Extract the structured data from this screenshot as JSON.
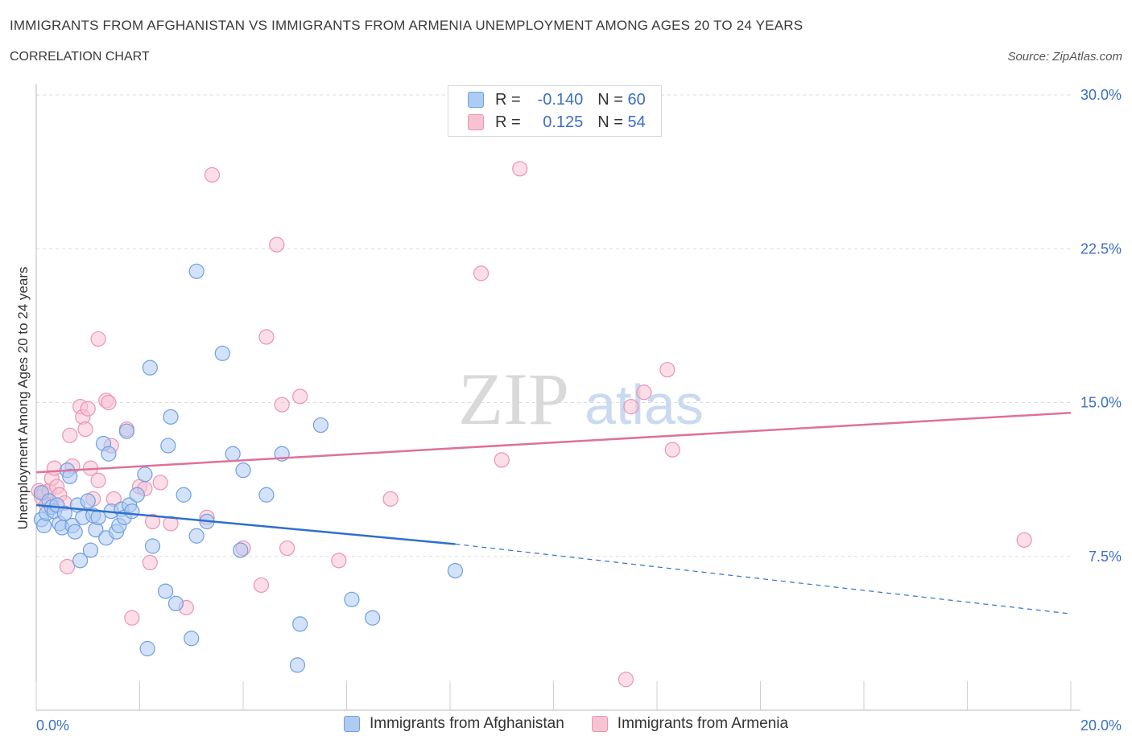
{
  "header": {
    "title": "IMMIGRANTS FROM AFGHANISTAN VS IMMIGRANTS FROM ARMENIA UNEMPLOYMENT AMONG AGES 20 TO 24 YEARS",
    "subtitle": "CORRELATION CHART",
    "source": "Source: ZipAtlas.com"
  },
  "legend": {
    "r_label": "R =",
    "n_label": "N =",
    "rows": [
      {
        "r": "-0.140",
        "n": "60"
      },
      {
        "r": "0.125",
        "n": "54"
      }
    ]
  },
  "watermark": {
    "zip": "ZIP",
    "atlas": "atlas"
  },
  "colors": {
    "blue_fill": "#aecbf2",
    "blue_stroke": "#6e9fe0",
    "blue_line": "#2f6fcf",
    "pink_fill": "#f7c3d3",
    "pink_stroke": "#eb93b2",
    "pink_line": "#e0709a",
    "axis_label": "#3b6fc4",
    "grid": "#dcdcdc"
  },
  "chart_data": {
    "type": "scatter",
    "title": "IMMIGRANTS FROM AFGHANISTAN VS IMMIGRANTS FROM ARMENIA UNEMPLOYMENT AMONG AGES 20 TO 24 YEARS",
    "xlabel": "",
    "ylabel": "Unemployment Among Ages 20 to 24 years",
    "xlim": [
      0,
      20
    ],
    "ylim": [
      0,
      30
    ],
    "x_tick_labels": [
      "0.0%",
      "20.0%"
    ],
    "y_ticks": [
      7.5,
      15.0,
      22.5,
      30.0
    ],
    "y_tick_labels": [
      "7.5%",
      "15.0%",
      "22.5%",
      "30.0%"
    ],
    "series": [
      {
        "name": "Immigrants from Afghanistan",
        "color": "blue",
        "points": [
          [
            0.1,
            10.6
          ],
          [
            0.1,
            9.3
          ],
          [
            0.15,
            9.0
          ],
          [
            0.2,
            9.6
          ],
          [
            0.25,
            10.2
          ],
          [
            0.3,
            9.9
          ],
          [
            0.35,
            9.7
          ],
          [
            0.4,
            10.0
          ],
          [
            0.45,
            9.1
          ],
          [
            0.5,
            8.9
          ],
          [
            0.55,
            9.6
          ],
          [
            0.6,
            11.7
          ],
          [
            0.65,
            11.4
          ],
          [
            0.7,
            9.0
          ],
          [
            0.75,
            8.7
          ],
          [
            0.8,
            10.0
          ],
          [
            0.85,
            7.3
          ],
          [
            0.9,
            9.4
          ],
          [
            1.0,
            10.2
          ],
          [
            1.05,
            7.8
          ],
          [
            1.1,
            9.5
          ],
          [
            1.15,
            8.8
          ],
          [
            1.2,
            9.4
          ],
          [
            1.3,
            13.0
          ],
          [
            1.35,
            8.4
          ],
          [
            1.4,
            12.5
          ],
          [
            1.45,
            9.7
          ],
          [
            1.55,
            8.7
          ],
          [
            1.6,
            9.0
          ],
          [
            1.65,
            9.8
          ],
          [
            1.7,
            9.4
          ],
          [
            1.75,
            13.6
          ],
          [
            1.8,
            10.0
          ],
          [
            1.85,
            9.7
          ],
          [
            1.95,
            10.5
          ],
          [
            2.1,
            11.5
          ],
          [
            2.15,
            3.0
          ],
          [
            2.2,
            16.7
          ],
          [
            2.25,
            8.0
          ],
          [
            2.5,
            5.8
          ],
          [
            2.55,
            12.9
          ],
          [
            2.6,
            14.3
          ],
          [
            2.7,
            5.2
          ],
          [
            2.85,
            10.5
          ],
          [
            3.0,
            3.5
          ],
          [
            3.1,
            21.4
          ],
          [
            3.1,
            8.5
          ],
          [
            3.3,
            9.2
          ],
          [
            3.6,
            17.4
          ],
          [
            3.8,
            12.5
          ],
          [
            3.95,
            7.8
          ],
          [
            4.0,
            11.7
          ],
          [
            4.45,
            10.5
          ],
          [
            4.75,
            12.5
          ],
          [
            5.05,
            2.2
          ],
          [
            5.1,
            4.2
          ],
          [
            5.5,
            13.9
          ],
          [
            6.1,
            5.4
          ],
          [
            6.5,
            4.5
          ],
          [
            8.1,
            6.8
          ]
        ]
      },
      {
        "name": "Immigrants from Armenia",
        "color": "pink",
        "points": [
          [
            0.05,
            10.7
          ],
          [
            0.1,
            10.4
          ],
          [
            0.15,
            10.6
          ],
          [
            0.2,
            10.0
          ],
          [
            0.25,
            10.7
          ],
          [
            0.3,
            11.3
          ],
          [
            0.35,
            11.8
          ],
          [
            0.4,
            10.9
          ],
          [
            0.45,
            10.5
          ],
          [
            0.55,
            10.1
          ],
          [
            0.6,
            7.0
          ],
          [
            0.65,
            13.4
          ],
          [
            0.7,
            11.9
          ],
          [
            0.85,
            14.8
          ],
          [
            0.9,
            14.3
          ],
          [
            0.95,
            13.7
          ],
          [
            1.0,
            14.7
          ],
          [
            1.05,
            11.8
          ],
          [
            1.1,
            10.3
          ],
          [
            1.2,
            11.2
          ],
          [
            1.2,
            18.1
          ],
          [
            1.35,
            15.1
          ],
          [
            1.4,
            15.0
          ],
          [
            1.45,
            12.9
          ],
          [
            1.5,
            10.3
          ],
          [
            1.75,
            13.7
          ],
          [
            1.85,
            4.5
          ],
          [
            2.0,
            10.9
          ],
          [
            2.1,
            10.8
          ],
          [
            2.2,
            7.2
          ],
          [
            2.25,
            9.2
          ],
          [
            2.4,
            11.1
          ],
          [
            2.6,
            9.1
          ],
          [
            2.9,
            5.0
          ],
          [
            3.3,
            9.4
          ],
          [
            3.4,
            26.1
          ],
          [
            4.0,
            7.9
          ],
          [
            4.35,
            6.1
          ],
          [
            4.45,
            18.2
          ],
          [
            4.65,
            22.7
          ],
          [
            4.75,
            14.9
          ],
          [
            4.85,
            7.9
          ],
          [
            5.1,
            15.3
          ],
          [
            5.85,
            7.3
          ],
          [
            6.85,
            10.3
          ],
          [
            8.6,
            21.3
          ],
          [
            9.0,
            12.2
          ],
          [
            9.35,
            26.4
          ],
          [
            11.4,
            1.5
          ],
          [
            11.5,
            14.8
          ],
          [
            11.75,
            15.5
          ],
          [
            12.2,
            16.6
          ],
          [
            12.3,
            12.7
          ],
          [
            19.1,
            8.3
          ]
        ]
      }
    ],
    "trend_lines": [
      {
        "series": "Immigrants from Afghanistan",
        "solid_from": [
          0,
          10.0
        ],
        "solid_to": [
          8.1,
          8.1
        ],
        "dashed_to": [
          20,
          4.7
        ]
      },
      {
        "series": "Immigrants from Armenia",
        "solid_from": [
          0,
          11.6
        ],
        "solid_to": [
          20,
          14.5
        ]
      }
    ]
  }
}
